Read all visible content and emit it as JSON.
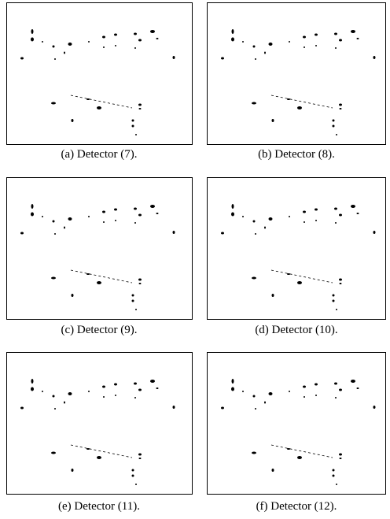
{
  "panels": [
    {
      "caption": "(a) Detector (7)."
    },
    {
      "caption": "(b) Detector (8)."
    },
    {
      "caption": "(c) Detector (9)."
    },
    {
      "caption": "(d) Detector (10)."
    },
    {
      "caption": "(e) Detector (11)."
    },
    {
      "caption": "(f) Detector (12)."
    }
  ]
}
